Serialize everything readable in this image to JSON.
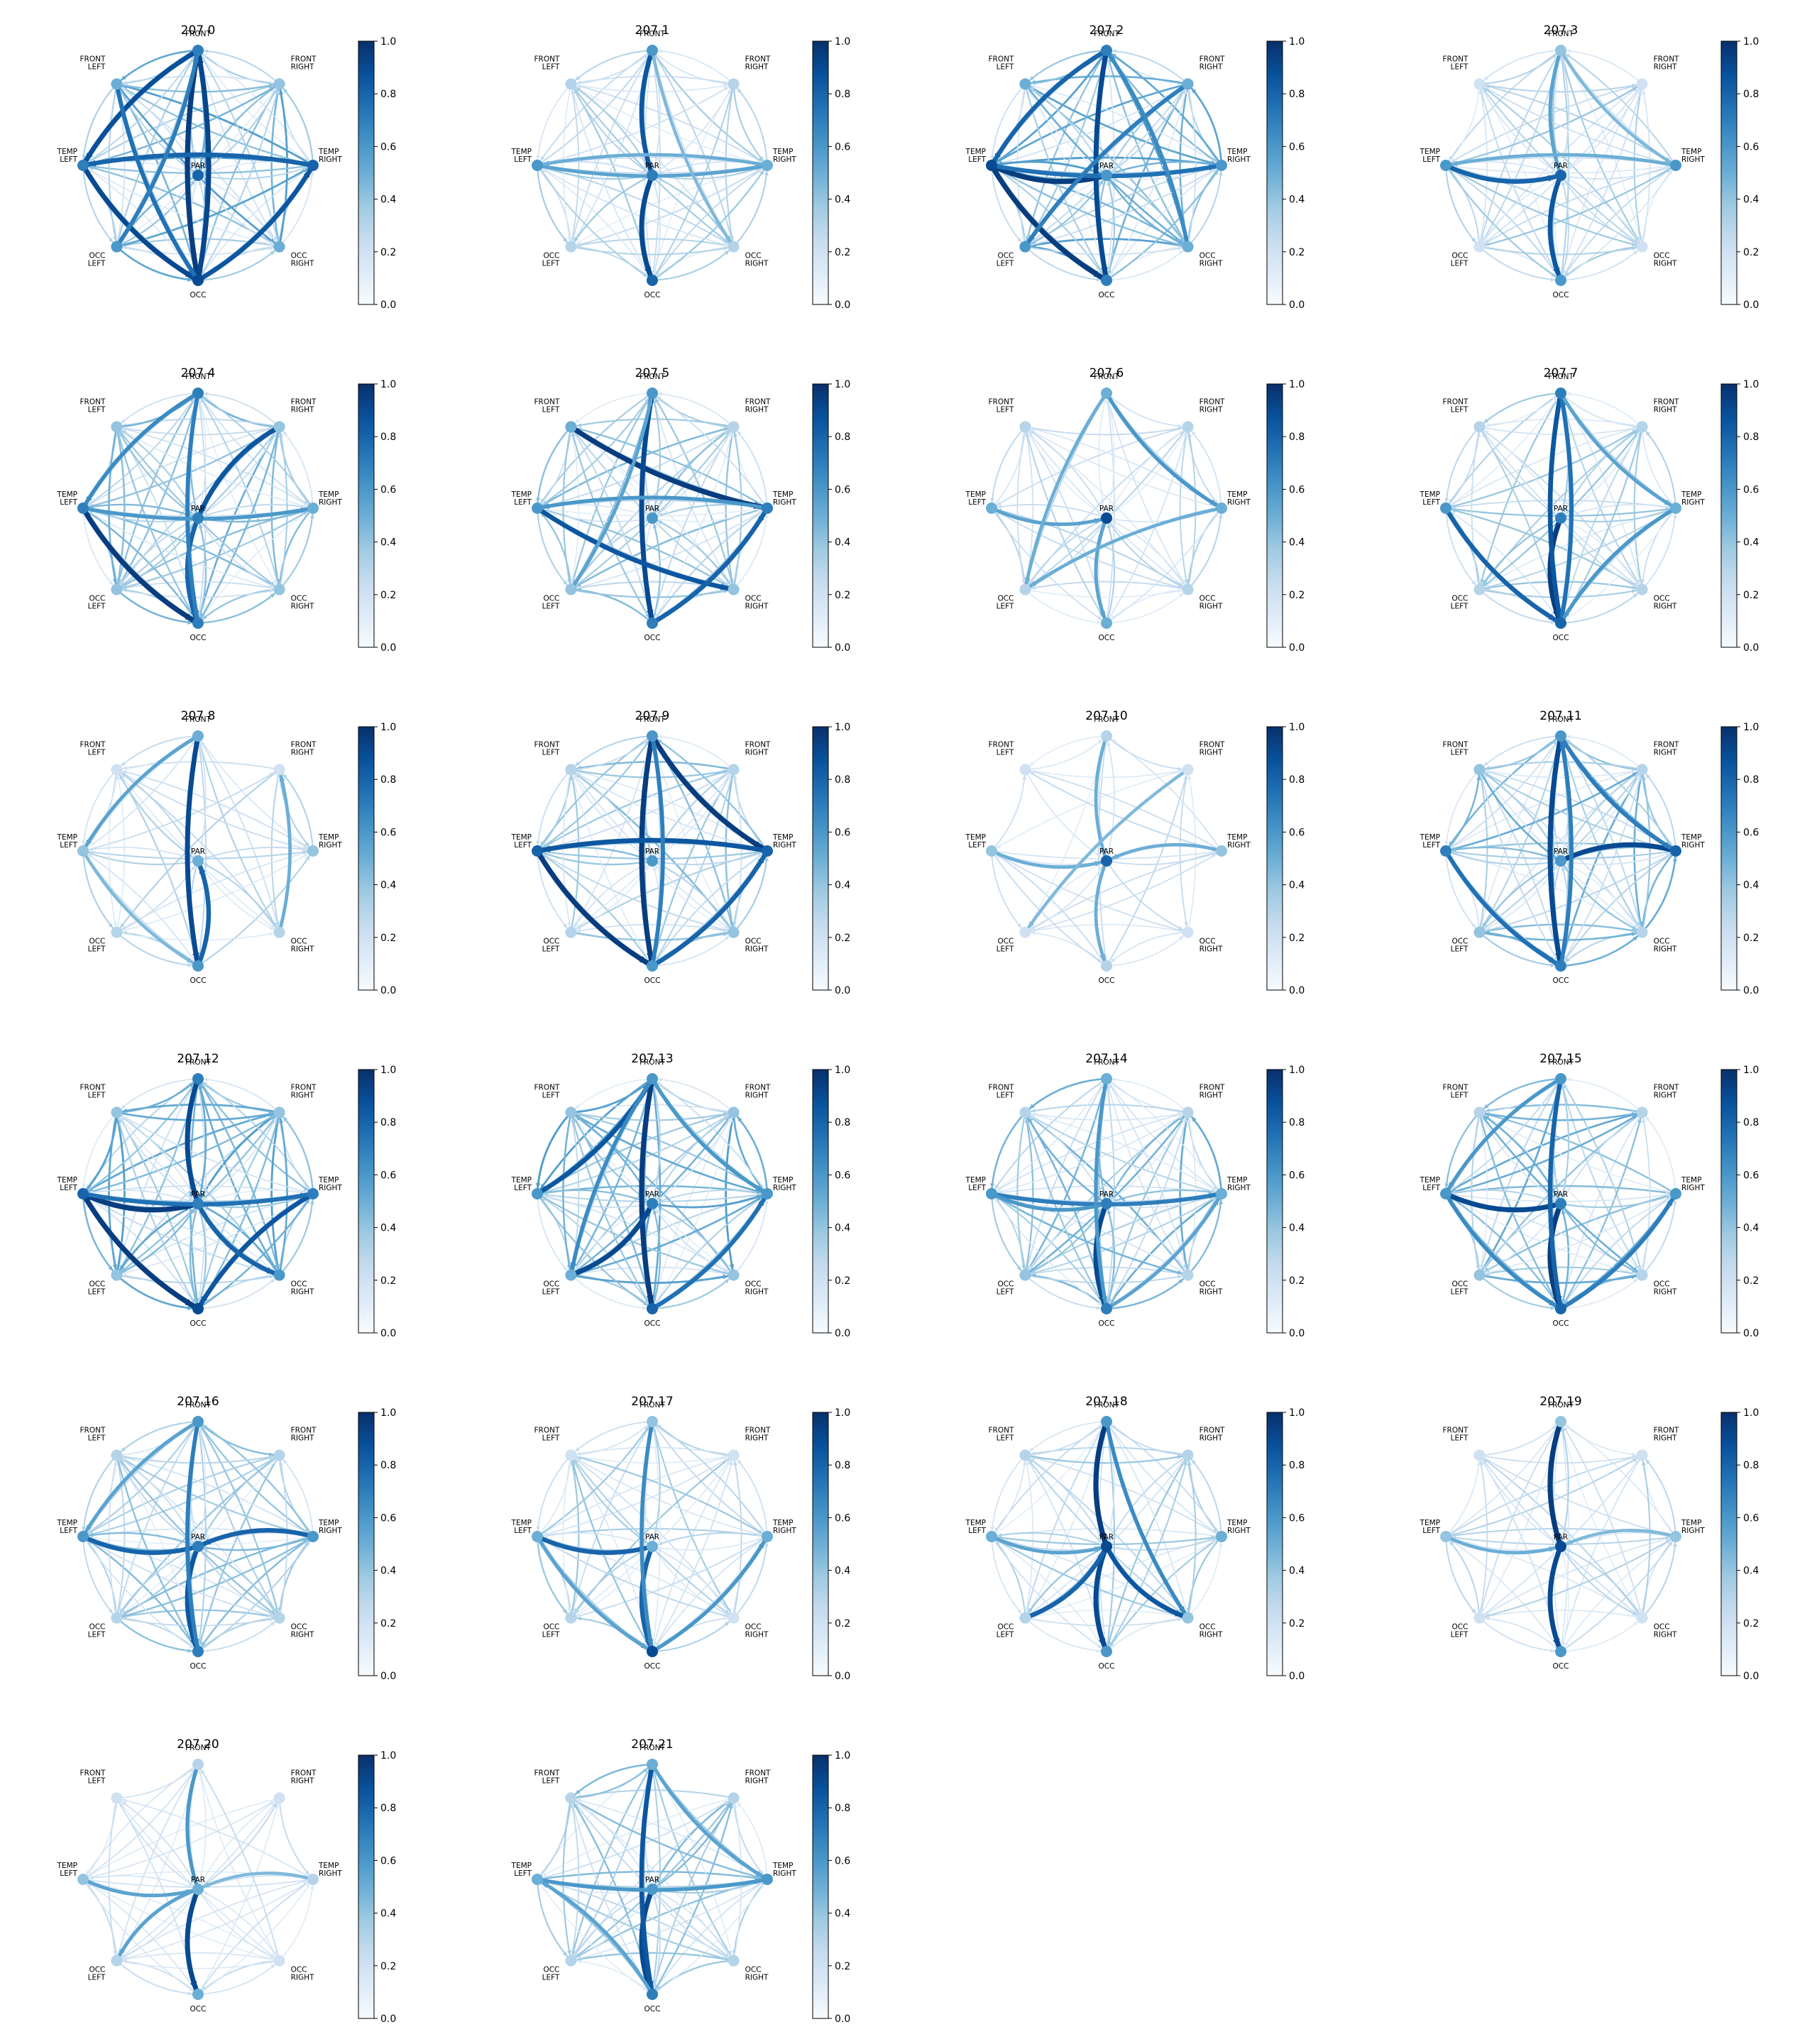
{
  "colormap": "Blues",
  "colors": {
    "low": "#f7fbff",
    "mid": "#6baed6",
    "high": "#08306b"
  },
  "chart_data": {
    "type": "directed-network-grid",
    "node_count": 8,
    "nodes": [
      {
        "id": "FRONT",
        "label": [
          "FRONT"
        ]
      },
      {
        "id": "FRONT_RIGHT",
        "label": [
          "FRONT",
          "RIGHT"
        ]
      },
      {
        "id": "TEMP_RIGHT",
        "label": [
          "TEMP",
          "RIGHT"
        ]
      },
      {
        "id": "OCC_RIGHT",
        "label": [
          "OCC",
          "RIGHT"
        ]
      },
      {
        "id": "OCC",
        "label": [
          "OCC"
        ]
      },
      {
        "id": "OCC_LEFT",
        "label": [
          "OCC",
          "LEFT"
        ]
      },
      {
        "id": "TEMP_LEFT",
        "label": [
          "TEMP",
          "LEFT"
        ]
      },
      {
        "id": "FRONT_LEFT",
        "label": [
          "FRONT",
          "LEFT"
        ]
      },
      {
        "id": "PAR",
        "label": [
          "PAR"
        ]
      }
    ],
    "colorbar": {
      "range": [
        0.0,
        1.0
      ],
      "ticks": [
        "0.0",
        "0.2",
        "0.4",
        "0.6",
        "0.8",
        "1.0"
      ]
    },
    "panels": [
      {
        "title": "207 0",
        "nodes": [
          0.7,
          0.4,
          0.8,
          0.5,
          0.9,
          0.6,
          0.7,
          0.5,
          0.8
        ],
        "strong": [
          [
            "FRONT",
            "OCC",
            0.95
          ],
          [
            "OCC",
            "FRONT",
            0.92
          ],
          [
            "TEMP_LEFT",
            "OCC",
            0.9
          ],
          [
            "FRONT",
            "TEMP_LEFT",
            0.88
          ],
          [
            "OCC",
            "TEMP_RIGHT",
            0.85
          ],
          [
            "TEMP_RIGHT",
            "TEMP_LEFT",
            0.8
          ],
          [
            "FRONT_LEFT",
            "OCC",
            0.75
          ],
          [
            "OCC_LEFT",
            "FRONT",
            0.7
          ]
        ],
        "bg": 0.55
      },
      {
        "title": "207 1",
        "nodes": [
          0.6,
          0.3,
          0.5,
          0.3,
          0.8,
          0.3,
          0.6,
          0.3,
          0.7
        ],
        "strong": [
          [
            "FRONT",
            "PAR",
            0.85
          ],
          [
            "PAR",
            "OCC",
            0.9
          ],
          [
            "TEMP_LEFT",
            "TEMP_RIGHT",
            0.55
          ],
          [
            "TEMP_RIGHT",
            "TEMP_LEFT",
            0.5
          ],
          [
            "FRONT",
            "OCC_RIGHT",
            0.45
          ]
        ],
        "bg": 0.4
      },
      {
        "title": "207 2",
        "nodes": [
          0.7,
          0.5,
          0.6,
          0.5,
          0.7,
          0.6,
          0.9,
          0.5,
          0.6
        ],
        "strong": [
          [
            "TEMP_LEFT",
            "PAR",
            0.95
          ],
          [
            "TEMP_LEFT",
            "OCC",
            0.95
          ],
          [
            "FRONT",
            "OCC",
            0.9
          ],
          [
            "FRONT",
            "TEMP_LEFT",
            0.8
          ],
          [
            "TEMP_LEFT",
            "TEMP_RIGHT",
            0.75
          ],
          [
            "FRONT_RIGHT",
            "OCC_LEFT",
            0.7
          ],
          [
            "OCC_RIGHT",
            "FRONT",
            0.65
          ]
        ],
        "bg": 0.55
      },
      {
        "title": "207 3",
        "nodes": [
          0.4,
          0.2,
          0.6,
          0.2,
          0.6,
          0.2,
          0.6,
          0.2,
          0.8
        ],
        "strong": [
          [
            "PAR",
            "OCC",
            0.85
          ],
          [
            "TEMP_LEFT",
            "PAR",
            0.8
          ],
          [
            "FRONT",
            "PAR",
            0.55
          ],
          [
            "TEMP_RIGHT",
            "TEMP_LEFT",
            0.5
          ],
          [
            "FRONT",
            "TEMP_RIGHT",
            0.45
          ]
        ],
        "bg": 0.4
      },
      {
        "title": "207 4",
        "nodes": [
          0.7,
          0.4,
          0.5,
          0.4,
          0.7,
          0.4,
          0.7,
          0.4,
          0.7
        ],
        "strong": [
          [
            "TEMP_LEFT",
            "OCC",
            0.95
          ],
          [
            "FRONT_RIGHT",
            "PAR",
            0.85
          ],
          [
            "PAR",
            "OCC",
            0.8
          ],
          [
            "FRONT",
            "OCC",
            0.7
          ],
          [
            "FRONT",
            "TEMP_LEFT",
            0.65
          ],
          [
            "TEMP_LEFT",
            "TEMP_RIGHT",
            0.6
          ]
        ],
        "bg": 0.5
      },
      {
        "title": "207 5",
        "nodes": [
          0.6,
          0.3,
          0.7,
          0.4,
          0.7,
          0.4,
          0.6,
          0.5,
          0.6
        ],
        "strong": [
          [
            "FRONT_LEFT",
            "TEMP_RIGHT",
            0.95
          ],
          [
            "FRONT",
            "OCC",
            0.9
          ],
          [
            "TEMP_LEFT",
            "OCC_RIGHT",
            0.85
          ],
          [
            "OCC",
            "TEMP_RIGHT",
            0.8
          ],
          [
            "TEMP_RIGHT",
            "TEMP_LEFT",
            0.6
          ],
          [
            "OCC_LEFT",
            "FRONT",
            0.55
          ]
        ],
        "bg": 0.45
      },
      {
        "title": "207 6",
        "nodes": [
          0.5,
          0.3,
          0.5,
          0.3,
          0.5,
          0.3,
          0.5,
          0.3,
          0.9
        ],
        "strong": [
          [
            "FRONT",
            "TEMP_RIGHT",
            0.6
          ],
          [
            "TEMP_LEFT",
            "PAR",
            0.55
          ],
          [
            "PAR",
            "OCC",
            0.55
          ],
          [
            "FRONT",
            "OCC_LEFT",
            0.5
          ],
          [
            "TEMP_RIGHT",
            "OCC_LEFT",
            0.5
          ]
        ],
        "bg": 0.35
      },
      {
        "title": "207 7",
        "nodes": [
          0.7,
          0.3,
          0.5,
          0.3,
          0.8,
          0.3,
          0.6,
          0.3,
          0.7
        ],
        "strong": [
          [
            "PAR",
            "OCC",
            0.95
          ],
          [
            "FRONT",
            "OCC",
            0.85
          ],
          [
            "TEMP_LEFT",
            "OCC",
            0.8
          ],
          [
            "OCC",
            "FRONT",
            0.75
          ],
          [
            "TEMP_RIGHT",
            "OCC",
            0.6
          ],
          [
            "FRONT",
            "TEMP_RIGHT",
            0.55
          ]
        ],
        "bg": 0.4
      },
      {
        "title": "207 8",
        "nodes": [
          0.5,
          0.2,
          0.4,
          0.3,
          0.6,
          0.3,
          0.4,
          0.2,
          0.5
        ],
        "strong": [
          [
            "FRONT",
            "OCC",
            0.9
          ],
          [
            "OCC",
            "PAR",
            0.8
          ],
          [
            "FRONT",
            "TEMP_LEFT",
            0.55
          ],
          [
            "OCC_RIGHT",
            "FRONT_RIGHT",
            0.5
          ],
          [
            "TEMP_LEFT",
            "OCC",
            0.45
          ]
        ],
        "bg": 0.35
      },
      {
        "title": "207 9",
        "nodes": [
          0.6,
          0.3,
          0.8,
          0.4,
          0.6,
          0.3,
          0.8,
          0.3,
          0.6
        ],
        "strong": [
          [
            "FRONT",
            "OCC",
            0.95
          ],
          [
            "FRONT",
            "TEMP_RIGHT",
            0.95
          ],
          [
            "TEMP_LEFT",
            "OCC",
            0.95
          ],
          [
            "TEMP_RIGHT",
            "TEMP_LEFT",
            0.85
          ],
          [
            "OCC",
            "TEMP_RIGHT",
            0.8
          ],
          [
            "OCC",
            "FRONT",
            0.7
          ]
        ],
        "bg": 0.45
      },
      {
        "title": "207 10",
        "nodes": [
          0.3,
          0.2,
          0.4,
          0.2,
          0.3,
          0.2,
          0.4,
          0.2,
          0.8
        ],
        "strong": [
          [
            "FRONT",
            "PAR",
            0.5
          ],
          [
            "PAR",
            "OCC",
            0.5
          ],
          [
            "TEMP_LEFT",
            "PAR",
            0.5
          ],
          [
            "TEMP_RIGHT",
            "PAR",
            0.5
          ],
          [
            "FRONT_RIGHT",
            "OCC_LEFT",
            0.45
          ]
        ],
        "bg": 0.3
      },
      {
        "title": "207 11",
        "nodes": [
          0.6,
          0.3,
          0.8,
          0.3,
          0.7,
          0.4,
          0.7,
          0.4,
          0.6
        ],
        "strong": [
          [
            "FRONT",
            "OCC",
            0.9
          ],
          [
            "TEMP_RIGHT",
            "PAR",
            0.9
          ],
          [
            "FRONT",
            "OCC",
            0.9
          ],
          [
            "TEMP_LEFT",
            "OCC",
            0.75
          ],
          [
            "FRONT",
            "TEMP_RIGHT",
            0.7
          ],
          [
            "OCC",
            "FRONT",
            0.7
          ]
        ],
        "bg": 0.5
      },
      {
        "title": "207 12",
        "nodes": [
          0.7,
          0.4,
          0.7,
          0.6,
          0.9,
          0.4,
          0.8,
          0.4,
          0.7
        ],
        "strong": [
          [
            "TEMP_LEFT",
            "OCC",
            0.95
          ],
          [
            "TEMP_LEFT",
            "PAR",
            0.95
          ],
          [
            "FRONT",
            "PAR",
            0.9
          ],
          [
            "TEMP_RIGHT",
            "OCC",
            0.85
          ],
          [
            "PAR",
            "OCC_RIGHT",
            0.8
          ],
          [
            "TEMP_LEFT",
            "TEMP_RIGHT",
            0.75
          ]
        ],
        "bg": 0.55
      },
      {
        "title": "207 13",
        "nodes": [
          0.6,
          0.4,
          0.6,
          0.4,
          0.8,
          0.5,
          0.6,
          0.4,
          0.7
        ],
        "strong": [
          [
            "FRONT",
            "OCC",
            0.95
          ],
          [
            "TEMP_LEFT",
            "FRONT",
            0.85
          ],
          [
            "OCC_LEFT",
            "PAR",
            0.9
          ],
          [
            "OCC",
            "TEMP_RIGHT",
            0.75
          ],
          [
            "FRONT",
            "TEMP_RIGHT",
            0.6
          ],
          [
            "FRONT",
            "OCC_LEFT",
            0.65
          ]
        ],
        "bg": 0.55
      },
      {
        "title": "207 14",
        "nodes": [
          0.5,
          0.3,
          0.5,
          0.3,
          0.7,
          0.4,
          0.6,
          0.3,
          0.7
        ],
        "strong": [
          [
            "PAR",
            "OCC",
            0.9
          ],
          [
            "TEMP_LEFT",
            "TEMP_RIGHT",
            0.7
          ],
          [
            "FRONT",
            "OCC",
            0.6
          ],
          [
            "TEMP_LEFT",
            "PAR",
            0.6
          ],
          [
            "OCC",
            "TEMP_RIGHT",
            0.55
          ]
        ],
        "bg": 0.5
      },
      {
        "title": "207 15",
        "nodes": [
          0.6,
          0.3,
          0.6,
          0.3,
          0.8,
          0.4,
          0.6,
          0.3,
          0.7
        ],
        "strong": [
          [
            "PAR",
            "OCC",
            0.95
          ],
          [
            "TEMP_LEFT",
            "PAR",
            0.9
          ],
          [
            "FRONT",
            "OCC",
            0.8
          ],
          [
            "OCC",
            "TEMP_RIGHT",
            0.7
          ],
          [
            "TEMP_LEFT",
            "OCC",
            0.65
          ],
          [
            "FRONT",
            "TEMP_LEFT",
            0.6
          ]
        ],
        "bg": 0.5
      },
      {
        "title": "207 16",
        "nodes": [
          0.6,
          0.3,
          0.6,
          0.3,
          0.7,
          0.3,
          0.6,
          0.3,
          0.7
        ],
        "strong": [
          [
            "PAR",
            "OCC",
            0.85
          ],
          [
            "TEMP_LEFT",
            "PAR",
            0.8
          ],
          [
            "TEMP_RIGHT",
            "PAR",
            0.8
          ],
          [
            "FRONT",
            "OCC",
            0.7
          ],
          [
            "FRONT",
            "TEMP_LEFT",
            0.55
          ]
        ],
        "bg": 0.45
      },
      {
        "title": "207 17",
        "nodes": [
          0.4,
          0.2,
          0.5,
          0.2,
          0.9,
          0.3,
          0.5,
          0.2,
          0.5
        ],
        "strong": [
          [
            "PAR",
            "OCC",
            0.8
          ],
          [
            "TEMP_LEFT",
            "PAR",
            0.8
          ],
          [
            "FRONT",
            "OCC",
            0.65
          ],
          [
            "OCC",
            "TEMP_RIGHT",
            0.6
          ],
          [
            "TEMP_LEFT",
            "OCC",
            0.55
          ]
        ],
        "bg": 0.4
      },
      {
        "title": "207 18",
        "nodes": [
          0.6,
          0.3,
          0.5,
          0.4,
          0.6,
          0.3,
          0.5,
          0.3,
          0.9
        ],
        "strong": [
          [
            "FRONT",
            "PAR",
            0.95
          ],
          [
            "PAR",
            "OCC",
            0.9
          ],
          [
            "PAR",
            "OCC_RIGHT",
            0.85
          ],
          [
            "OCC_LEFT",
            "PAR",
            0.8
          ],
          [
            "FRONT",
            "OCC_RIGHT",
            0.65
          ],
          [
            "TEMP_LEFT",
            "PAR",
            0.55
          ]
        ],
        "bg": 0.4
      },
      {
        "title": "207 19",
        "nodes": [
          0.4,
          0.2,
          0.4,
          0.2,
          0.6,
          0.2,
          0.4,
          0.2,
          0.9
        ],
        "strong": [
          [
            "FRONT",
            "PAR",
            0.95
          ],
          [
            "PAR",
            "OCC",
            0.9
          ],
          [
            "TEMP_LEFT",
            "PAR",
            0.5
          ],
          [
            "TEMP_RIGHT",
            "PAR",
            0.45
          ]
        ],
        "bg": 0.35
      },
      {
        "title": "207 20",
        "nodes": [
          0.3,
          0.2,
          0.3,
          0.2,
          0.5,
          0.3,
          0.4,
          0.2,
          0.5
        ],
        "strong": [
          [
            "PAR",
            "OCC",
            0.9
          ],
          [
            "FRONT",
            "PAR",
            0.6
          ],
          [
            "TEMP_LEFT",
            "PAR",
            0.55
          ],
          [
            "PAR",
            "OCC_LEFT",
            0.55
          ],
          [
            "TEMP_RIGHT",
            "PAR",
            0.45
          ]
        ],
        "bg": 0.3
      },
      {
        "title": "207 21",
        "nodes": [
          0.5,
          0.3,
          0.6,
          0.3,
          0.7,
          0.3,
          0.5,
          0.3,
          0.6
        ],
        "strong": [
          [
            "PAR",
            "OCC",
            0.9
          ],
          [
            "FRONT",
            "OCC",
            0.85
          ],
          [
            "TEMP_LEFT",
            "TEMP_RIGHT",
            0.6
          ],
          [
            "FRONT",
            "TEMP_RIGHT",
            0.55
          ],
          [
            "OCC",
            "TEMP_LEFT",
            0.55
          ]
        ],
        "bg": 0.45
      }
    ]
  }
}
